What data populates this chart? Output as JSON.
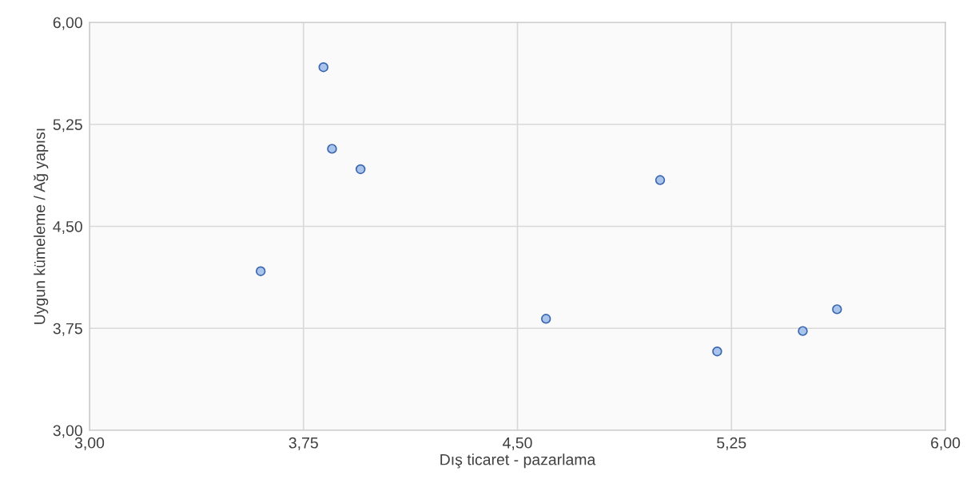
{
  "chart_data": {
    "type": "scatter",
    "xlabel": "Dış ticaret - pazarlama",
    "ylabel": "Uygun kümeleme / Ağ yapısı",
    "x": [
      3.6,
      3.82,
      3.85,
      3.95,
      4.6,
      5.0,
      5.2,
      5.5,
      5.62
    ],
    "values": [
      4.17,
      5.67,
      5.07,
      4.92,
      3.82,
      4.84,
      3.58,
      3.73,
      3.89
    ],
    "color": "#a9c4eb",
    "marker": "circle",
    "grid": true,
    "legend": false,
    "xlim": [
      3,
      6
    ],
    "ylim": [
      3,
      6
    ],
    "xticks": [
      {
        "value": 3,
        "label": "3,00"
      },
      {
        "value": 3.75,
        "label": "3,75"
      },
      {
        "value": 4.5,
        "label": "4,50"
      },
      {
        "value": 5.25,
        "label": "5,25"
      },
      {
        "value": 6,
        "label": "6,00"
      }
    ],
    "yticks": [
      {
        "value": 3,
        "label": "3,00"
      },
      {
        "value": 3.75,
        "label": "3,75"
      },
      {
        "value": 4.5,
        "label": "4,50"
      },
      {
        "value": 5.25,
        "label": "5,25"
      },
      {
        "value": 6,
        "label": "6,00"
      }
    ]
  }
}
